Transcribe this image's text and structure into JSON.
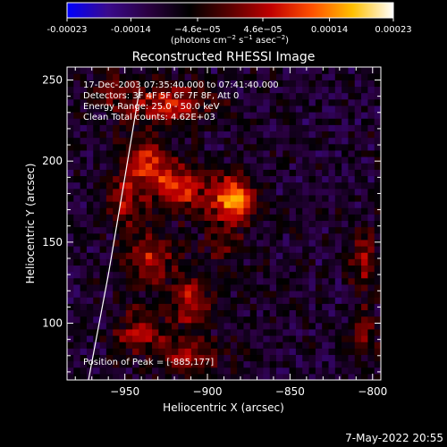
{
  "colorbar": {
    "ticks": [
      "-0.00023",
      "-0.00014",
      "−4.6e−05",
      "4.6e−05",
      "0.00014",
      "0.00023"
    ],
    "tick_values": [
      -0.00023,
      -0.00014,
      -4.6e-05,
      4.6e-05,
      0.00014,
      0.00023
    ],
    "range": [
      -0.00023,
      0.00023
    ],
    "units_main": "(photons cm",
    "units_sup1": "−2",
    "units_mid1": " s",
    "units_sup2": "−1",
    "units_mid2": " asec",
    "units_sup3": "−2",
    "units_end": ")",
    "stops": [
      "#0000ff",
      "#3a0a8c",
      "#2a0040",
      "#000000",
      "#5a0000",
      "#c00000",
      "#ff5000",
      "#ffc000",
      "#ffffff"
    ]
  },
  "chart_data": {
    "type": "heatmap",
    "title": "Reconstructed RHESSI Image",
    "xlabel": "Heliocentric X (arcsec)",
    "ylabel": "Heliocentric Y (arcsec)",
    "xlim": [
      -985,
      -795
    ],
    "ylim": [
      65,
      258
    ],
    "x_ticks": [
      -950,
      -900,
      -850,
      -800
    ],
    "x_tick_labels": [
      "−950",
      "−900",
      "−850",
      "−800"
    ],
    "y_ticks": [
      100,
      150,
      200,
      250
    ],
    "y_tick_labels": [
      "100",
      "150",
      "200",
      "250"
    ],
    "grid_nx": 48,
    "grid_ny": 49,
    "sources": [
      {
        "x": -885,
        "y": 177,
        "amp": 1.0,
        "sx": 9,
        "sy": 9
      },
      {
        "x": -918,
        "y": 185,
        "amp": 0.72,
        "sx": 12,
        "sy": 10
      },
      {
        "x": -940,
        "y": 200,
        "amp": 0.65,
        "sx": 9,
        "sy": 9
      },
      {
        "x": -925,
        "y": 235,
        "amp": 0.6,
        "sx": 18,
        "sy": 10
      },
      {
        "x": -950,
        "y": 175,
        "amp": 0.45,
        "sx": 7,
        "sy": 12
      },
      {
        "x": -935,
        "y": 140,
        "amp": 0.55,
        "sx": 10,
        "sy": 12
      },
      {
        "x": -910,
        "y": 115,
        "amp": 0.5,
        "sx": 9,
        "sy": 12
      },
      {
        "x": -940,
        "y": 95,
        "amp": 0.45,
        "sx": 12,
        "sy": 10
      },
      {
        "x": -910,
        "y": 80,
        "amp": 0.4,
        "sx": 14,
        "sy": 8
      },
      {
        "x": -890,
        "y": 150,
        "amp": 0.3,
        "sx": 10,
        "sy": 10
      },
      {
        "x": -805,
        "y": 140,
        "amp": 0.45,
        "sx": 6,
        "sy": 12
      },
      {
        "x": -805,
        "y": 95,
        "amp": 0.4,
        "sx": 6,
        "sy": 12
      },
      {
        "x": -960,
        "y": 245,
        "amp": 0.35,
        "sx": 8,
        "sy": 8
      }
    ],
    "limb_line": [
      [
        -972,
        65
      ],
      [
        -960,
        130
      ],
      [
        -950,
        190
      ],
      [
        -941,
        245
      ]
    ],
    "annotations": {
      "time": "17-Dec-2003 07:35:40.000 to 07:41:40.000",
      "detectors": "Detectors: 3F 4F 5F 6F 7F 8F, Att 0",
      "energy": "Energy Range: 25.0 - 50.0 keV",
      "clean": "Clean    Total counts: 4.62E+03",
      "peak": "Position of Peak = [-885,177]"
    },
    "peak": {
      "x": -885,
      "y": 177
    }
  },
  "footer": {
    "timestamp": "7-May-2022 20:55"
  }
}
